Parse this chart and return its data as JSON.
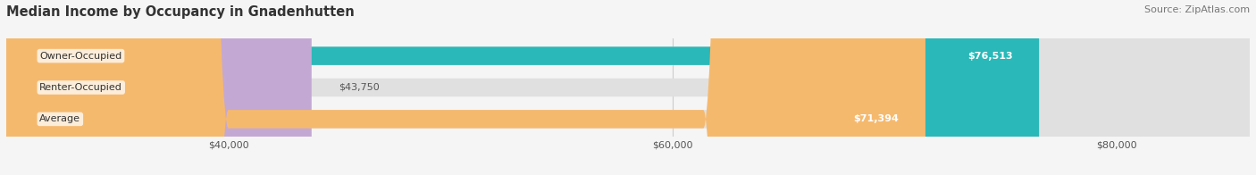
{
  "title": "Median Income by Occupancy in Gnadenhutten",
  "source": "Source: ZipAtlas.com",
  "categories": [
    "Owner-Occupied",
    "Renter-Occupied",
    "Average"
  ],
  "values": [
    76513,
    43750,
    71394
  ],
  "bar_colors": [
    "#2ab8b8",
    "#c4a8d4",
    "#f5b96e"
  ],
  "value_labels": [
    "$76,513",
    "$43,750",
    "$71,394"
  ],
  "x_ticks": [
    40000,
    60000,
    80000
  ],
  "x_tick_labels": [
    "$40,000",
    "$60,000",
    "$80,000"
  ],
  "x_min": 30000,
  "x_max": 86000,
  "bar_height": 0.58,
  "background_color": "#f5f5f5",
  "title_fontsize": 10.5,
  "source_fontsize": 8,
  "label_fontsize": 8,
  "value_fontsize": 8
}
